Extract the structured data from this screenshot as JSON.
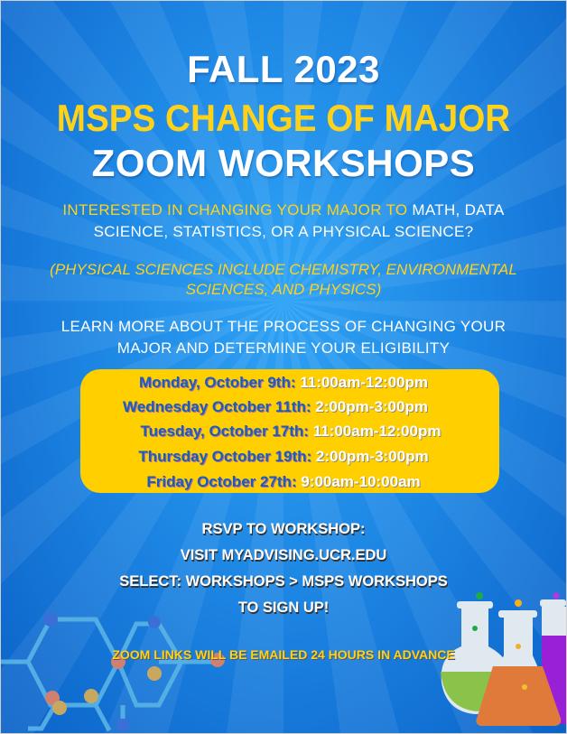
{
  "colors": {
    "background": "#1e88e5",
    "accent_yellow": "#ffd21a",
    "box": "#ffcf00",
    "day_text": "#1a5fb4",
    "white": "#ffffff"
  },
  "title": {
    "line1": "FALL 2023",
    "line2": "MSPS CHANGE OF MAJOR",
    "line3": "ZOOM WORKSHOPS"
  },
  "intro": {
    "yellow_part": "INTERESTED IN CHANGING YOUR MAJOR TO",
    "white_part": " MATH, DATA",
    "line2": "SCIENCE, STATISTICS, OR  A PHYSICAL SCIENCE?"
  },
  "note": {
    "line1": "(PHYSICAL SCIENCES INCLUDE CHEMISTRY, ENVIRONMENTAL",
    "line2": "SCIENCES, AND PHYSICS)"
  },
  "learn": {
    "line1": "LEARN MORE ABOUT THE PROCESS OF CHANGING YOUR",
    "line2": "MAJOR AND DETERMINE YOUR ELIGIBILITY"
  },
  "schedule": [
    {
      "day": "Monday, October 9th:",
      "time": " 11:00am-12:00pm"
    },
    {
      "day": "Wednesday October 11th:",
      "time": " 2:00pm-3:00pm"
    },
    {
      "day": "Tuesday, October 17th:",
      "time": " 11:00am-12:00pm"
    },
    {
      "day": "Thursday October 19th:",
      "time": " 2:00pm-3:00pm"
    },
    {
      "day": "Friday October 27th:",
      "time": " 9:00am-10:00am"
    }
  ],
  "rsvp": [
    "RSVP TO WORKSHOP:",
    "VISIT MYADVISING.UCR.EDU",
    "SELECT: WORKSHOPS > MSPS WORKSHOPS",
    "TO SIGN UP!"
  ],
  "zoom_note": "ZOOM LINKS WILL BE EMAILED 24 HOURS IN ADVANCE",
  "icons": [
    "molecule-hexagon-graphic",
    "chemistry-flasks-graphic"
  ]
}
